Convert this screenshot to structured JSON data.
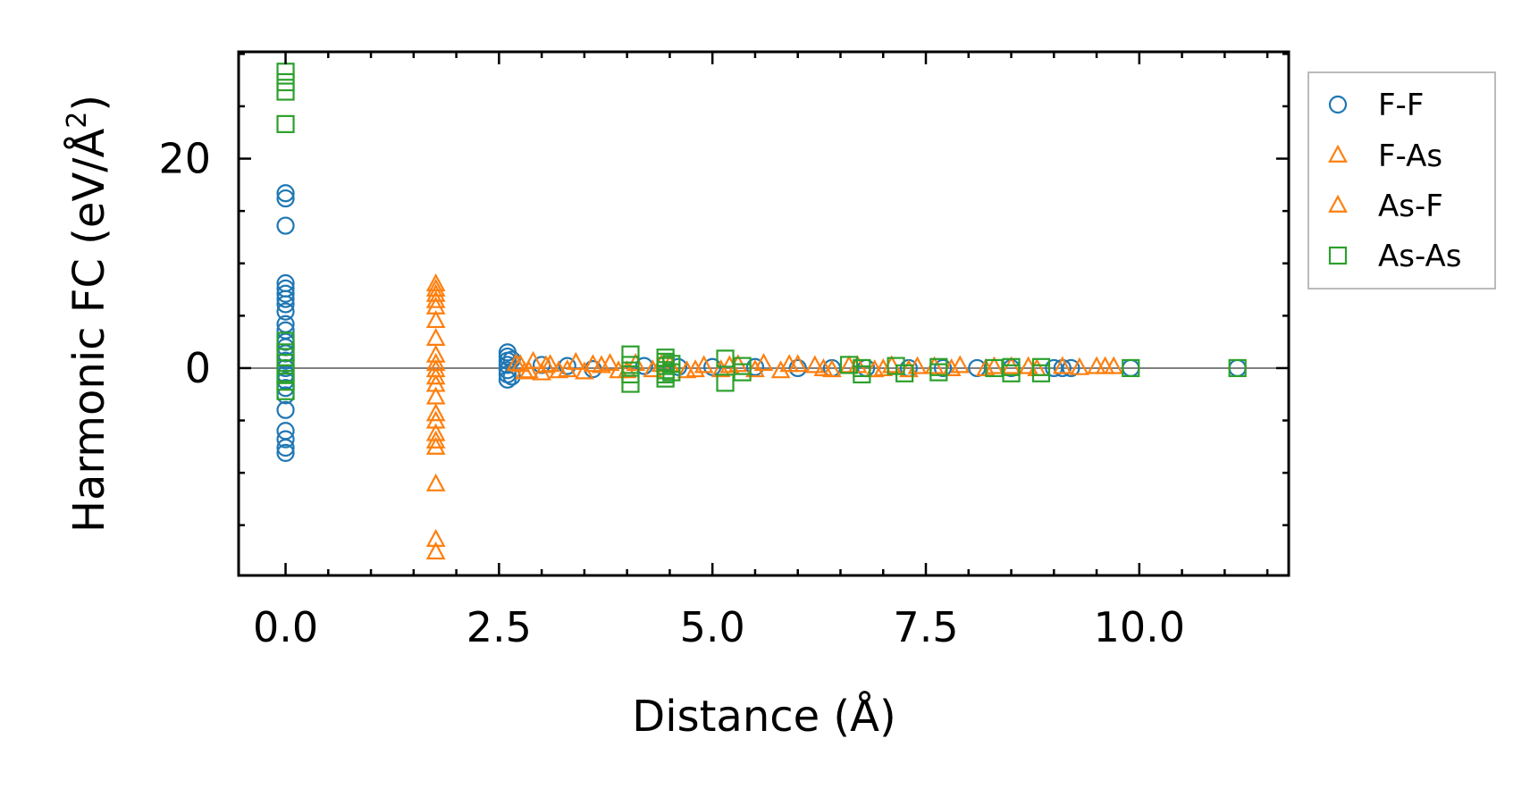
{
  "chart_data": {
    "type": "scatter",
    "xlabel": "Distance (Å)",
    "ylabel_main": "Harmonic FC (eV/Å",
    "ylabel_sup": "2",
    "ylabel_close": ")",
    "xlim": [
      -0.55,
      11.75
    ],
    "ylim": [
      -19.8,
      30.2
    ],
    "xticks": [
      0.0,
      2.5,
      5.0,
      7.5,
      10.0
    ],
    "xtick_labels": [
      "0.0",
      "2.5",
      "5.0",
      "7.5",
      "10.0"
    ],
    "yticks": [
      0,
      20
    ],
    "ytick_labels": [
      "0",
      "20"
    ],
    "x_minor_step": 0.5,
    "y_minor_step": 5,
    "zero_line": true,
    "grid": false,
    "legend_placement": "outside-top-right",
    "series": [
      {
        "name": "F-F",
        "marker": "circle",
        "color": "#1f77b4",
        "points": [
          [
            0.0,
            16.7
          ],
          [
            0.0,
            16.2
          ],
          [
            0.0,
            13.6
          ],
          [
            0.0,
            8.1
          ],
          [
            0.0,
            7.6
          ],
          [
            0.0,
            7.1
          ],
          [
            0.0,
            6.6
          ],
          [
            0.0,
            6.1
          ],
          [
            0.0,
            5.4
          ],
          [
            0.0,
            4.2
          ],
          [
            0.0,
            3.6
          ],
          [
            0.0,
            2.5
          ],
          [
            0.0,
            2.0
          ],
          [
            0.0,
            1.4
          ],
          [
            0.0,
            0.7
          ],
          [
            0.0,
            0.0
          ],
          [
            0.0,
            -0.6
          ],
          [
            0.0,
            -1.2
          ],
          [
            0.0,
            -1.9
          ],
          [
            0.0,
            -2.6
          ],
          [
            0.0,
            -4.0
          ],
          [
            0.0,
            -6.0
          ],
          [
            0.0,
            -6.8
          ],
          [
            0.0,
            -7.6
          ],
          [
            0.0,
            -8.1
          ],
          [
            2.6,
            1.5
          ],
          [
            2.6,
            1.1
          ],
          [
            2.6,
            0.7
          ],
          [
            2.6,
            0.3
          ],
          [
            2.6,
            -0.2
          ],
          [
            2.6,
            -0.6
          ],
          [
            2.6,
            -1.1
          ],
          [
            2.65,
            0.8
          ],
          [
            2.65,
            -0.8
          ],
          [
            3.0,
            0.3
          ],
          [
            3.3,
            0.2
          ],
          [
            3.6,
            -0.1
          ],
          [
            4.2,
            0.2
          ],
          [
            4.6,
            0.1
          ],
          [
            5.0,
            0.1
          ],
          [
            5.5,
            0.1
          ],
          [
            6.0,
            0.0
          ],
          [
            6.4,
            0.0
          ],
          [
            6.8,
            0.0
          ],
          [
            7.3,
            0.0
          ],
          [
            7.7,
            0.0
          ],
          [
            8.1,
            0.0
          ],
          [
            8.5,
            0.0
          ],
          [
            9.0,
            0.0
          ],
          [
            9.1,
            0.0
          ],
          [
            9.2,
            0.0
          ],
          [
            9.9,
            0.0
          ],
          [
            11.15,
            0.0
          ]
        ]
      },
      {
        "name": "F-As",
        "marker": "triangle",
        "color": "#ff7f0e",
        "points": [
          [
            1.76,
            8.0
          ],
          [
            1.76,
            7.5
          ],
          [
            1.76,
            7.0
          ],
          [
            1.76,
            6.4
          ],
          [
            1.76,
            5.8
          ],
          [
            1.76,
            4.5
          ],
          [
            1.76,
            2.8
          ],
          [
            1.76,
            1.2
          ],
          [
            1.76,
            0.4
          ],
          [
            1.76,
            -0.2
          ],
          [
            1.76,
            -0.9
          ],
          [
            1.76,
            -1.6
          ],
          [
            1.76,
            -2.8
          ],
          [
            1.76,
            -4.4
          ],
          [
            1.76,
            -5.1
          ],
          [
            1.76,
            -6.3
          ],
          [
            1.76,
            -7.0
          ],
          [
            1.76,
            -7.6
          ],
          [
            1.76,
            -11.1
          ],
          [
            1.76,
            -16.4
          ],
          [
            1.76,
            -17.6
          ],
          [
            2.7,
            0.4
          ],
          [
            2.8,
            -0.4
          ],
          [
            2.9,
            0.6
          ],
          [
            3.0,
            -0.5
          ],
          [
            3.1,
            0.3
          ],
          [
            3.2,
            -0.3
          ],
          [
            3.4,
            0.5
          ],
          [
            3.5,
            -0.4
          ],
          [
            3.7,
            0.2
          ],
          [
            3.9,
            -0.3
          ],
          [
            4.1,
            0.4
          ],
          [
            4.3,
            -0.2
          ],
          [
            4.5,
            0.3
          ],
          [
            4.7,
            -0.3
          ],
          [
            4.9,
            0.2
          ],
          [
            5.1,
            -0.2
          ],
          [
            5.3,
            0.3
          ],
          [
            5.6,
            0.4
          ],
          [
            5.8,
            -0.3
          ],
          [
            6.0,
            0.3
          ],
          [
            6.2,
            0.2
          ],
          [
            6.4,
            -0.2
          ],
          [
            6.7,
            0.2
          ],
          [
            6.9,
            -0.2
          ],
          [
            7.1,
            0.2
          ],
          [
            7.3,
            -0.2
          ],
          [
            7.6,
            0.1
          ],
          [
            7.9,
            0.2
          ],
          [
            8.2,
            -0.1
          ],
          [
            8.5,
            0.1
          ],
          [
            8.8,
            -0.1
          ],
          [
            9.1,
            0.1
          ],
          [
            9.5,
            0.1
          ],
          [
            9.6,
            0.1
          ],
          [
            9.7,
            0.1
          ]
        ]
      },
      {
        "name": "As-F",
        "marker": "triangle",
        "color": "#ff7f0e",
        "points": [
          [
            2.75,
            0.3
          ],
          [
            2.85,
            -0.3
          ],
          [
            3.05,
            0.2
          ],
          [
            3.3,
            -0.2
          ],
          [
            3.6,
            0.3
          ],
          [
            3.8,
            0.4
          ],
          [
            4.0,
            -0.3
          ],
          [
            4.4,
            0.3
          ],
          [
            4.8,
            -0.2
          ],
          [
            5.2,
            0.2
          ],
          [
            5.5,
            -0.2
          ],
          [
            5.9,
            0.3
          ],
          [
            6.3,
            -0.1
          ],
          [
            6.6,
            0.2
          ],
          [
            7.0,
            -0.1
          ],
          [
            7.4,
            0.1
          ],
          [
            7.8,
            -0.1
          ],
          [
            8.3,
            0.1
          ],
          [
            8.7,
            0.1
          ],
          [
            9.3,
            0.0
          ]
        ]
      },
      {
        "name": "As-As",
        "marker": "square",
        "color": "#2ca02c",
        "points": [
          [
            0.0,
            28.3
          ],
          [
            0.0,
            27.3
          ],
          [
            0.0,
            26.4
          ],
          [
            0.0,
            23.3
          ],
          [
            0.0,
            2.6
          ],
          [
            0.0,
            1.5
          ],
          [
            0.0,
            0.5
          ],
          [
            0.0,
            -0.5
          ],
          [
            0.0,
            -1.3
          ],
          [
            0.0,
            -2.2
          ],
          [
            4.04,
            1.3
          ],
          [
            4.04,
            0.3
          ],
          [
            4.04,
            -0.6
          ],
          [
            4.04,
            -1.5
          ],
          [
            4.45,
            1.0
          ],
          [
            4.45,
            0.6
          ],
          [
            4.45,
            0.2
          ],
          [
            4.45,
            -0.2
          ],
          [
            4.45,
            -0.6
          ],
          [
            4.45,
            -1.0
          ],
          [
            4.52,
            0.4
          ],
          [
            4.52,
            -0.4
          ],
          [
            5.15,
            0.9
          ],
          [
            5.15,
            -1.4
          ],
          [
            5.35,
            0.2
          ],
          [
            5.35,
            -0.4
          ],
          [
            6.6,
            0.3
          ],
          [
            6.75,
            0.0
          ],
          [
            6.75,
            -0.6
          ],
          [
            7.15,
            0.2
          ],
          [
            7.25,
            -0.5
          ],
          [
            7.65,
            0.1
          ],
          [
            7.65,
            -0.4
          ],
          [
            8.3,
            0.0
          ],
          [
            8.5,
            0.1
          ],
          [
            8.5,
            -0.5
          ],
          [
            8.85,
            0.1
          ],
          [
            8.85,
            -0.5
          ],
          [
            9.9,
            0.0
          ],
          [
            11.15,
            0.0
          ]
        ]
      }
    ]
  }
}
